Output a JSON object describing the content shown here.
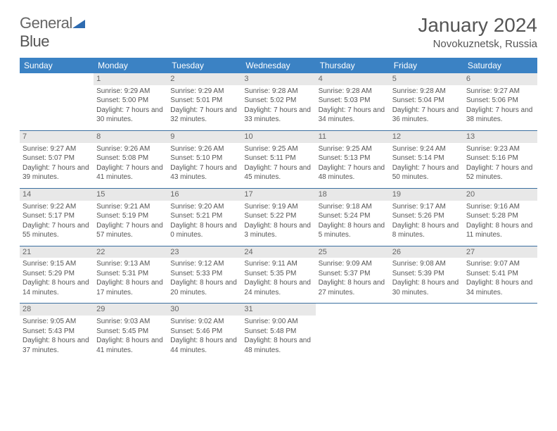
{
  "logo": {
    "word1": "General",
    "word2": "Blue"
  },
  "title": "January 2024",
  "subtitle": "Novokuznetsk, Russia",
  "colors": {
    "header_bg": "#3b82c4",
    "header_text": "#ffffff",
    "daynum_bg": "#e8e8e8",
    "border": "#3b6fa0",
    "text": "#555555",
    "logo_blue": "#2e6bb0"
  },
  "weekdays": [
    "Sunday",
    "Monday",
    "Tuesday",
    "Wednesday",
    "Thursday",
    "Friday",
    "Saturday"
  ],
  "weeks": [
    [
      {
        "n": "",
        "lines": [
          "",
          "",
          ""
        ]
      },
      {
        "n": "1",
        "lines": [
          "Sunrise: 9:29 AM",
          "Sunset: 5:00 PM",
          "Daylight: 7 hours and 30 minutes."
        ]
      },
      {
        "n": "2",
        "lines": [
          "Sunrise: 9:29 AM",
          "Sunset: 5:01 PM",
          "Daylight: 7 hours and 32 minutes."
        ]
      },
      {
        "n": "3",
        "lines": [
          "Sunrise: 9:28 AM",
          "Sunset: 5:02 PM",
          "Daylight: 7 hours and 33 minutes."
        ]
      },
      {
        "n": "4",
        "lines": [
          "Sunrise: 9:28 AM",
          "Sunset: 5:03 PM",
          "Daylight: 7 hours and 34 minutes."
        ]
      },
      {
        "n": "5",
        "lines": [
          "Sunrise: 9:28 AM",
          "Sunset: 5:04 PM",
          "Daylight: 7 hours and 36 minutes."
        ]
      },
      {
        "n": "6",
        "lines": [
          "Sunrise: 9:27 AM",
          "Sunset: 5:06 PM",
          "Daylight: 7 hours and 38 minutes."
        ]
      }
    ],
    [
      {
        "n": "7",
        "lines": [
          "Sunrise: 9:27 AM",
          "Sunset: 5:07 PM",
          "Daylight: 7 hours and 39 minutes."
        ]
      },
      {
        "n": "8",
        "lines": [
          "Sunrise: 9:26 AM",
          "Sunset: 5:08 PM",
          "Daylight: 7 hours and 41 minutes."
        ]
      },
      {
        "n": "9",
        "lines": [
          "Sunrise: 9:26 AM",
          "Sunset: 5:10 PM",
          "Daylight: 7 hours and 43 minutes."
        ]
      },
      {
        "n": "10",
        "lines": [
          "Sunrise: 9:25 AM",
          "Sunset: 5:11 PM",
          "Daylight: 7 hours and 45 minutes."
        ]
      },
      {
        "n": "11",
        "lines": [
          "Sunrise: 9:25 AM",
          "Sunset: 5:13 PM",
          "Daylight: 7 hours and 48 minutes."
        ]
      },
      {
        "n": "12",
        "lines": [
          "Sunrise: 9:24 AM",
          "Sunset: 5:14 PM",
          "Daylight: 7 hours and 50 minutes."
        ]
      },
      {
        "n": "13",
        "lines": [
          "Sunrise: 9:23 AM",
          "Sunset: 5:16 PM",
          "Daylight: 7 hours and 52 minutes."
        ]
      }
    ],
    [
      {
        "n": "14",
        "lines": [
          "Sunrise: 9:22 AM",
          "Sunset: 5:17 PM",
          "Daylight: 7 hours and 55 minutes."
        ]
      },
      {
        "n": "15",
        "lines": [
          "Sunrise: 9:21 AM",
          "Sunset: 5:19 PM",
          "Daylight: 7 hours and 57 minutes."
        ]
      },
      {
        "n": "16",
        "lines": [
          "Sunrise: 9:20 AM",
          "Sunset: 5:21 PM",
          "Daylight: 8 hours and 0 minutes."
        ]
      },
      {
        "n": "17",
        "lines": [
          "Sunrise: 9:19 AM",
          "Sunset: 5:22 PM",
          "Daylight: 8 hours and 3 minutes."
        ]
      },
      {
        "n": "18",
        "lines": [
          "Sunrise: 9:18 AM",
          "Sunset: 5:24 PM",
          "Daylight: 8 hours and 5 minutes."
        ]
      },
      {
        "n": "19",
        "lines": [
          "Sunrise: 9:17 AM",
          "Sunset: 5:26 PM",
          "Daylight: 8 hours and 8 minutes."
        ]
      },
      {
        "n": "20",
        "lines": [
          "Sunrise: 9:16 AM",
          "Sunset: 5:28 PM",
          "Daylight: 8 hours and 11 minutes."
        ]
      }
    ],
    [
      {
        "n": "21",
        "lines": [
          "Sunrise: 9:15 AM",
          "Sunset: 5:29 PM",
          "Daylight: 8 hours and 14 minutes."
        ]
      },
      {
        "n": "22",
        "lines": [
          "Sunrise: 9:13 AM",
          "Sunset: 5:31 PM",
          "Daylight: 8 hours and 17 minutes."
        ]
      },
      {
        "n": "23",
        "lines": [
          "Sunrise: 9:12 AM",
          "Sunset: 5:33 PM",
          "Daylight: 8 hours and 20 minutes."
        ]
      },
      {
        "n": "24",
        "lines": [
          "Sunrise: 9:11 AM",
          "Sunset: 5:35 PM",
          "Daylight: 8 hours and 24 minutes."
        ]
      },
      {
        "n": "25",
        "lines": [
          "Sunrise: 9:09 AM",
          "Sunset: 5:37 PM",
          "Daylight: 8 hours and 27 minutes."
        ]
      },
      {
        "n": "26",
        "lines": [
          "Sunrise: 9:08 AM",
          "Sunset: 5:39 PM",
          "Daylight: 8 hours and 30 minutes."
        ]
      },
      {
        "n": "27",
        "lines": [
          "Sunrise: 9:07 AM",
          "Sunset: 5:41 PM",
          "Daylight: 8 hours and 34 minutes."
        ]
      }
    ],
    [
      {
        "n": "28",
        "lines": [
          "Sunrise: 9:05 AM",
          "Sunset: 5:43 PM",
          "Daylight: 8 hours and 37 minutes."
        ]
      },
      {
        "n": "29",
        "lines": [
          "Sunrise: 9:03 AM",
          "Sunset: 5:45 PM",
          "Daylight: 8 hours and 41 minutes."
        ]
      },
      {
        "n": "30",
        "lines": [
          "Sunrise: 9:02 AM",
          "Sunset: 5:46 PM",
          "Daylight: 8 hours and 44 minutes."
        ]
      },
      {
        "n": "31",
        "lines": [
          "Sunrise: 9:00 AM",
          "Sunset: 5:48 PM",
          "Daylight: 8 hours and 48 minutes."
        ]
      },
      {
        "n": "",
        "lines": [
          "",
          "",
          ""
        ]
      },
      {
        "n": "",
        "lines": [
          "",
          "",
          ""
        ]
      },
      {
        "n": "",
        "lines": [
          "",
          "",
          ""
        ]
      }
    ]
  ]
}
